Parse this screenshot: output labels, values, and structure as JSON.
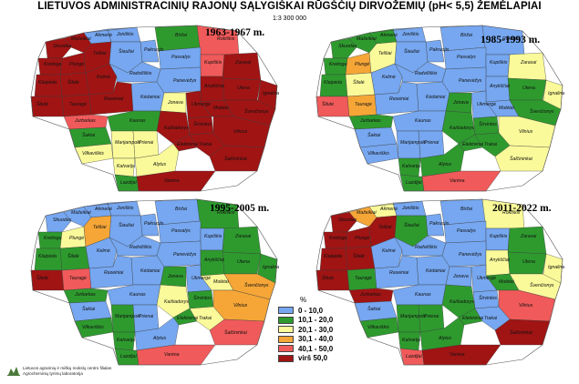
{
  "title": "LIETUVOS ADMINISTRACINIŲ RAJONŲ SĄLYGIŠKAI RŪGŠČIŲ DIRVOŽEMIŲ (pH< 5,5)  ŽEMĖLAPIAI",
  "scale": "1:3 300 000",
  "colors": {
    "c1": "#76a7f0",
    "c2": "#2e9a2e",
    "c3": "#fafa9a",
    "c4": "#f5a637",
    "c5": "#f05a5a",
    "c6": "#a01414"
  },
  "legend": {
    "unit": "%",
    "items": [
      {
        "label": "0 - 10,0",
        "color_key": "c1"
      },
      {
        "label": "10,1 - 20,0",
        "color_key": "c2"
      },
      {
        "label": "20,1 - 30,0",
        "color_key": "c3"
      },
      {
        "label": "30,1 - 40,0",
        "color_key": "c4"
      },
      {
        "label": "40,1 - 50,0",
        "color_key": "c5"
      },
      {
        "label": "virš 50,0",
        "color_key": "c6"
      }
    ]
  },
  "maps": [
    {
      "period": "1963-1967 m.",
      "classes": {
        "Skuodas": "c6",
        "Mažeikiai": "c6",
        "Akmenė": "c1",
        "Joniškis": "c1",
        "Pakruojis": "c1",
        "Biržai": "c2",
        "Rokiškis": "c5",
        "Kretinga": "c6",
        "Plungė": "c6",
        "Telšiai": "c6",
        "Kelmė": "c6",
        "Šiauliai": "c1",
        "Radviliškis": "c1",
        "Pasvalys": "c1",
        "Kupiškis": "c5",
        "Zarasai": "c6",
        "Klaipėda": "c6",
        "Šilalė": "c6",
        "Raseiniai": "c6",
        "Kėdainiai": "c1",
        "Panevėžys": "c1",
        "Anykščiai": "c6",
        "Utena": "c6",
        "Ignalina": "c6",
        "Šilutė": "c6",
        "Tauragė": "c6",
        "Jurbarkas": "c5",
        "Jonava": "c3",
        "Ukmergė": "c6",
        "Molėtai": "c6",
        "Švenčionys": "c6",
        "Šakiai": "c2",
        "Kaunas": "c2",
        "Širvintos": "c6",
        "Vilnius": "c6",
        "Vilkaviškis": "c3",
        "Marijampolė": "c3",
        "Prienai": "c3",
        "Kaišiadorys": "c6",
        "Elektrėnai": "c6",
        "Trakai": "c6",
        "Šalčininkai": "c6",
        "Kalvarija": "c3",
        "Alytus": "c3",
        "Lazdijai": "c2",
        "Varėna": "c6"
      }
    },
    {
      "period": "1985-1993 m.",
      "classes": {
        "Skuodas": "c2",
        "Mažeikiai": "c2",
        "Akmenė": "c2",
        "Joniškis": "c1",
        "Pakruojis": "c1",
        "Biržai": "c1",
        "Rokiškis": "c1",
        "Kretinga": "c2",
        "Plungė": "c4",
        "Telšiai": "c3",
        "Kelmė": "c1",
        "Šiauliai": "c1",
        "Radviliškis": "c1",
        "Pasvalys": "c1",
        "Kupiškis": "c1",
        "Zarasai": "c3",
        "Klaipėda": "c2",
        "Šilalė": "c3",
        "Raseiniai": "c1",
        "Kėdainiai": "c1",
        "Panevėžys": "c1",
        "Anykščiai": "c1",
        "Utena": "c2",
        "Ignalina": "c3",
        "Šilutė": "c5",
        "Tauragė": "c4",
        "Jurbarkas": "c2",
        "Jonava": "c2",
        "Ukmergė": "c1",
        "Molėtai": "c1",
        "Švenčionys": "c2",
        "Šakiai": "c1",
        "Kaunas": "c1",
        "Širvintos": "c2",
        "Vilnius": "c3",
        "Vilkaviškis": "c1",
        "Marijampolė": "c1",
        "Prienai": "c1",
        "Kaišiadorys": "c2",
        "Elektrėnai": "c2",
        "Trakai": "c2",
        "Šalčininkai": "c3",
        "Kalvarija": "c2",
        "Alytus": "c2",
        "Lazdijai": "c2",
        "Varėna": "c5"
      }
    },
    {
      "period": "1995-2005 m.",
      "classes": {
        "Skuodas": "c1",
        "Mažeikiai": "c1",
        "Akmenė": "c1",
        "Joniškis": "c1",
        "Pakruojis": "c1",
        "Biržai": "c1",
        "Rokiškis": "c2",
        "Kretinga": "c2",
        "Plungė": "c3",
        "Telšiai": "c4",
        "Kelmė": "c1",
        "Šiauliai": "c1",
        "Radviliškis": "c1",
        "Pasvalys": "c1",
        "Kupiškis": "c1",
        "Zarasai": "c2",
        "Klaipėda": "c2",
        "Šilalė": "c2",
        "Raseiniai": "c1",
        "Kėdainiai": "c1",
        "Panevėžys": "c1",
        "Anykščiai": "c2",
        "Utena": "c2",
        "Ignalina": "c2",
        "Šilutė": "c6",
        "Tauragė": "c5",
        "Jurbarkas": "c2",
        "Jonava": "c2",
        "Ukmergė": "c1",
        "Molėtai": "c3",
        "Švenčionys": "c4",
        "Šakiai": "c1",
        "Kaunas": "c1",
        "Širvintos": "c2",
        "Vilnius": "c4",
        "Vilkaviškis": "c2",
        "Marijampolė": "c2",
        "Prienai": "c1",
        "Kaišiadorys": "c3",
        "Elektrėnai": "c2",
        "Trakai": "c3",
        "Šalčininkai": "c5",
        "Kalvarija": "c2",
        "Alytus": "c1",
        "Lazdijai": "c2",
        "Varėna": "c5"
      }
    },
    {
      "period": "2011-2022 m.",
      "classes": {
        "Skuodas": "c6",
        "Mažeikiai": "c4",
        "Akmenė": "c3",
        "Joniškis": "c1",
        "Pakruojis": "c1",
        "Biržai": "c1",
        "Rokiškis": "c3",
        "Kretinga": "c6",
        "Plungė": "c6",
        "Telšiai": "c6",
        "Kelmė": "c1",
        "Šiauliai": "c2",
        "Radviliškis": "c1",
        "Pasvalys": "c1",
        "Kupiškis": "c1",
        "Zarasai": "c2",
        "Klaipėda": "c6",
        "Šilalė": "c6",
        "Raseiniai": "c1",
        "Kėdainiai": "c1",
        "Panevėžys": "c1",
        "Anykščiai": "c3",
        "Utena": "c2",
        "Ignalina": "c3",
        "Šilutė": "c6",
        "Tauragė": "c2",
        "Jurbarkas": "c6",
        "Jonava": "c1",
        "Ukmergė": "c1",
        "Molėtai": "c2",
        "Švenčionys": "c3",
        "Šakiai": "c1",
        "Kaunas": "c1",
        "Širvintos": "c1",
        "Vilnius": "c5",
        "Vilkaviškis": "c2",
        "Marijampolė": "c2",
        "Prienai": "c2",
        "Kaišiadorys": "c2",
        "Elektrėnai": "c2",
        "Trakai": "c1",
        "Šalčininkai": "c6",
        "Kalvarija": "c2",
        "Alytus": "c2",
        "Lazdijai": "c5",
        "Varėna": "c6"
      }
    }
  ],
  "footer": {
    "line1": "Lietuvos agrarinių ir miškų mokslų centro filialas",
    "line2": "Agrocheminių tyrimų laboratorija"
  }
}
